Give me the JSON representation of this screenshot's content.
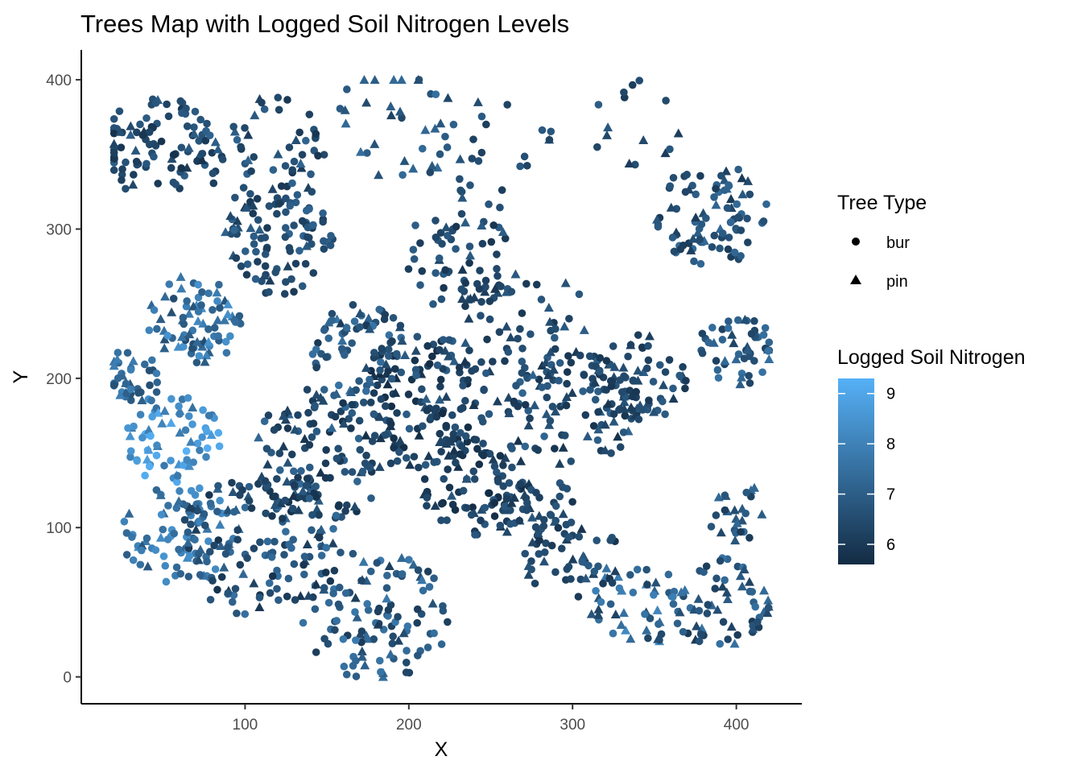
{
  "chart_data": {
    "type": "scatter",
    "title": "Trees Map with Logged Soil Nitrogen Levels",
    "xlabel": "X",
    "ylabel": "Y",
    "xlim": [
      0,
      440
    ],
    "ylim": [
      -18,
      420
    ],
    "x_ticks": [
      "100",
      "200",
      "300",
      "400"
    ],
    "y_ticks": [
      "0",
      "100",
      "200",
      "300",
      "400"
    ],
    "grid": false,
    "shape_legend": {
      "title": "Tree Type",
      "items": [
        {
          "label": "bur",
          "shape": "circle"
        },
        {
          "label": "pin",
          "shape": "triangle"
        }
      ]
    },
    "color_legend": {
      "title": "Logged Soil Nitrogen",
      "min": 5.6,
      "max": 9.3,
      "low_color": "#132B43",
      "high_color": "#56B1F7",
      "ticks": [
        "6",
        "7",
        "8",
        "9"
      ]
    },
    "clusters": [
      {
        "x": 45,
        "y": 355,
        "r": 35,
        "n": 90,
        "n_min": 5.8,
        "n_max": 7.0,
        "pin": 0.15
      },
      {
        "x": 110,
        "y": 350,
        "r": 40,
        "n": 70,
        "n_min": 5.9,
        "n_max": 7.2,
        "pin": 0.2
      },
      {
        "x": 70,
        "y": 240,
        "r": 30,
        "n": 80,
        "n_min": 6.5,
        "n_max": 8.5,
        "pin": 0.4
      },
      {
        "x": 55,
        "y": 160,
        "r": 30,
        "n": 70,
        "n_min": 7.5,
        "n_max": 9.3,
        "pin": 0.3
      },
      {
        "x": 60,
        "y": 95,
        "r": 35,
        "n": 80,
        "n_min": 6.8,
        "n_max": 8.5,
        "pin": 0.2
      },
      {
        "x": 110,
        "y": 90,
        "r": 50,
        "n": 150,
        "n_min": 5.8,
        "n_max": 7.5,
        "pin": 0.2
      },
      {
        "x": 150,
        "y": 150,
        "r": 45,
        "n": 130,
        "n_min": 5.8,
        "n_max": 7.3,
        "pin": 0.2
      },
      {
        "x": 210,
        "y": 185,
        "r": 45,
        "n": 140,
        "n_min": 5.6,
        "n_max": 7.0,
        "pin": 0.2
      },
      {
        "x": 240,
        "y": 130,
        "r": 35,
        "n": 100,
        "n_min": 5.6,
        "n_max": 6.8,
        "pin": 0.15
      },
      {
        "x": 180,
        "y": 40,
        "r": 45,
        "n": 110,
        "n_min": 6.0,
        "n_max": 7.8,
        "pin": 0.3
      },
      {
        "x": 120,
        "y": 290,
        "r": 35,
        "n": 90,
        "n_min": 6.0,
        "n_max": 7.2,
        "pin": 0.2
      },
      {
        "x": 170,
        "y": 220,
        "r": 30,
        "n": 70,
        "n_min": 6.0,
        "n_max": 7.6,
        "pin": 0.3
      },
      {
        "x": 300,
        "y": 180,
        "r": 40,
        "n": 110,
        "n_min": 5.8,
        "n_max": 7.2,
        "pin": 0.35
      },
      {
        "x": 340,
        "y": 200,
        "r": 30,
        "n": 70,
        "n_min": 5.9,
        "n_max": 7.0,
        "pin": 0.3
      },
      {
        "x": 385,
        "y": 310,
        "r": 35,
        "n": 90,
        "n_min": 6.0,
        "n_max": 7.4,
        "pin": 0.2
      },
      {
        "x": 400,
        "y": 220,
        "r": 25,
        "n": 50,
        "n_min": 6.2,
        "n_max": 7.6,
        "pin": 0.3
      },
      {
        "x": 390,
        "y": 50,
        "r": 30,
        "n": 60,
        "n_min": 6.0,
        "n_max": 7.6,
        "pin": 0.4
      },
      {
        "x": 340,
        "y": 50,
        "r": 30,
        "n": 50,
        "n_min": 6.0,
        "n_max": 8.3,
        "pin": 0.5
      },
      {
        "x": 300,
        "y": 80,
        "r": 30,
        "n": 50,
        "n_min": 5.8,
        "n_max": 7.0,
        "pin": 0.3
      },
      {
        "x": 230,
        "y": 280,
        "r": 35,
        "n": 60,
        "n_min": 5.9,
        "n_max": 7.0,
        "pin": 0.2
      },
      {
        "x": 280,
        "y": 110,
        "r": 25,
        "n": 40,
        "n_min": 5.8,
        "n_max": 6.8,
        "pin": 0.3
      },
      {
        "x": 190,
        "y": 370,
        "r": 40,
        "n": 35,
        "n_min": 6.2,
        "n_max": 7.5,
        "pin": 0.4
      },
      {
        "x": 250,
        "y": 350,
        "r": 40,
        "n": 25,
        "n_min": 6.0,
        "n_max": 7.0,
        "pin": 0.3
      },
      {
        "x": 400,
        "y": 110,
        "r": 20,
        "n": 25,
        "n_min": 6.0,
        "n_max": 7.4,
        "pin": 0.4
      },
      {
        "x": 340,
        "y": 370,
        "r": 30,
        "n": 15,
        "n_min": 6.0,
        "n_max": 7.0,
        "pin": 0.4
      },
      {
        "x": 270,
        "y": 240,
        "r": 40,
        "n": 50,
        "n_min": 5.9,
        "n_max": 7.0,
        "pin": 0.2
      },
      {
        "x": 30,
        "y": 200,
        "r": 20,
        "n": 40,
        "n_min": 6.5,
        "n_max": 8.0,
        "pin": 0.3
      }
    ]
  }
}
